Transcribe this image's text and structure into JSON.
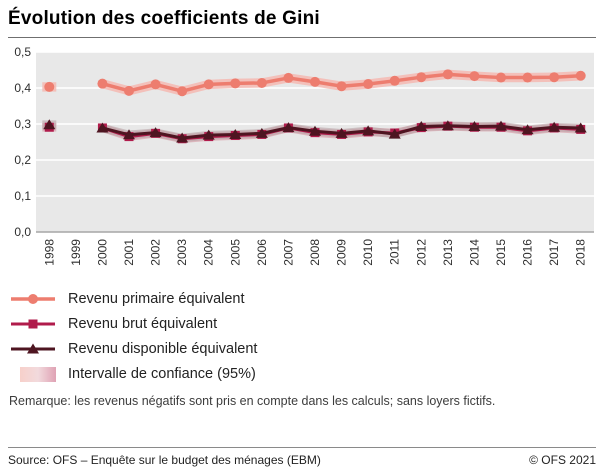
{
  "title": "Évolution des coefficients de Gini",
  "note": "Remarque: les revenus négatifs sont pris en compte dans les calculs; sans loyers fictifs.",
  "footer": {
    "source": "Source: OFS – Enquête sur le budget des ménages (EBM)",
    "copyright": "© OFS 2021"
  },
  "chart_data": {
    "type": "line",
    "title": "Évolution des coefficients de Gini",
    "x": [
      1998,
      1999,
      2000,
      2001,
      2002,
      2003,
      2004,
      2005,
      2006,
      2007,
      2008,
      2009,
      2010,
      2011,
      2012,
      2013,
      2014,
      2015,
      2016,
      2017,
      2018
    ],
    "ylim": [
      0.0,
      0.5
    ],
    "yticks": [
      [
        0.0,
        "0,0"
      ],
      [
        0.1,
        "0,1"
      ],
      [
        0.2,
        "0,2"
      ],
      [
        0.3,
        "0,3"
      ],
      [
        0.4,
        "0,4"
      ],
      [
        0.5,
        "0,5"
      ]
    ],
    "plot_bg": "#e8e8e8",
    "grid_color": "#ffffff",
    "axis_color": "#7a7a7a",
    "legend_position": "bottom-left",
    "series": [
      {
        "name": "Revenu primaire équivalent",
        "marker": "circle",
        "color": "#ed7d6f",
        "line_width": 3.5,
        "band_color": "#f5b8b1",
        "band_opacity": 0.85,
        "band": 0.013,
        "values": [
          0.403,
          null,
          0.412,
          0.392,
          0.41,
          0.391,
          0.41,
          0.413,
          0.414,
          0.428,
          0.417,
          0.405,
          0.411,
          0.42,
          0.43,
          0.438,
          0.433,
          0.429,
          0.429,
          0.43,
          0.434
        ]
      },
      {
        "name": "Revenu brut équivalent",
        "marker": "square",
        "color": "#b01b4b",
        "line_width": 3,
        "band_color": "#d9a3ad",
        "band_opacity": 0.7,
        "band": 0.012,
        "values": [
          0.291,
          null,
          0.289,
          0.265,
          0.274,
          0.259,
          0.265,
          0.268,
          0.271,
          0.289,
          0.276,
          0.271,
          0.278,
          0.275,
          0.29,
          0.294,
          0.291,
          0.291,
          0.281,
          0.289,
          0.285
        ]
      },
      {
        "name": "Revenu disponible équivalent",
        "marker": "triangle",
        "color": "#4e1521",
        "line_width": 3,
        "band_color": "#b9a3a6",
        "band_opacity": 0.6,
        "band": 0.012,
        "values": [
          0.298,
          null,
          0.289,
          0.27,
          0.276,
          0.261,
          0.269,
          0.271,
          0.274,
          0.29,
          0.28,
          0.274,
          0.281,
          0.272,
          0.293,
          0.295,
          0.293,
          0.294,
          0.284,
          0.291,
          0.289
        ]
      }
    ],
    "legend_confidence": {
      "label": "Intervalle de confiance (95%)",
      "swatch": [
        "#f7d0ca",
        "#f2dadd",
        "#dfa2b4"
      ]
    }
  }
}
